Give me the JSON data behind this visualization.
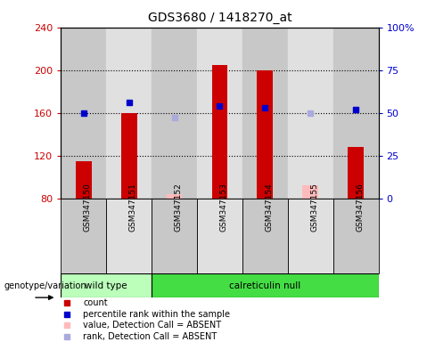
{
  "title": "GDS3680 / 1418270_at",
  "samples": [
    "GSM347150",
    "GSM347151",
    "GSM347152",
    "GSM347153",
    "GSM347154",
    "GSM347155",
    "GSM347156"
  ],
  "ylim_left": [
    80,
    240
  ],
  "ylim_right": [
    0,
    100
  ],
  "yticks_left": [
    80,
    120,
    160,
    200,
    240
  ],
  "yticks_right": [
    0,
    25,
    50,
    75,
    100
  ],
  "bars_present": [
    {
      "sample_idx": 0,
      "value": 115
    },
    {
      "sample_idx": 1,
      "value": 160
    },
    {
      "sample_idx": 3,
      "value": 205
    },
    {
      "sample_idx": 4,
      "value": 200
    },
    {
      "sample_idx": 6,
      "value": 128
    }
  ],
  "bars_absent": [
    {
      "sample_idx": 2,
      "value": 84
    },
    {
      "sample_idx": 5,
      "value": 92
    }
  ],
  "dots_present": [
    {
      "sample_idx": 0,
      "rank": 50
    },
    {
      "sample_idx": 1,
      "rank": 56
    },
    {
      "sample_idx": 3,
      "rank": 54
    },
    {
      "sample_idx": 4,
      "rank": 53
    },
    {
      "sample_idx": 6,
      "rank": 52
    }
  ],
  "dots_absent": [
    {
      "sample_idx": 2,
      "rank": 47
    },
    {
      "sample_idx": 5,
      "rank": 50
    }
  ],
  "bar_color_present": "#cc0000",
  "bar_color_absent": "#ffbbbb",
  "dot_color_present": "#0000cc",
  "dot_color_absent": "#aaaadd",
  "left_axis_color": "#cc0000",
  "right_axis_color": "#0000cc",
  "col_bg_dark": "#c8c8c8",
  "col_bg_light": "#e0e0e0",
  "wt_color": "#bbffbb",
  "cr_color": "#44dd44",
  "legend_items": [
    {
      "color": "#cc0000",
      "label": "count"
    },
    {
      "color": "#0000cc",
      "label": "percentile rank within the sample"
    },
    {
      "color": "#ffbbbb",
      "label": "value, Detection Call = ABSENT"
    },
    {
      "color": "#aaaadd",
      "label": "rank, Detection Call = ABSENT"
    }
  ]
}
